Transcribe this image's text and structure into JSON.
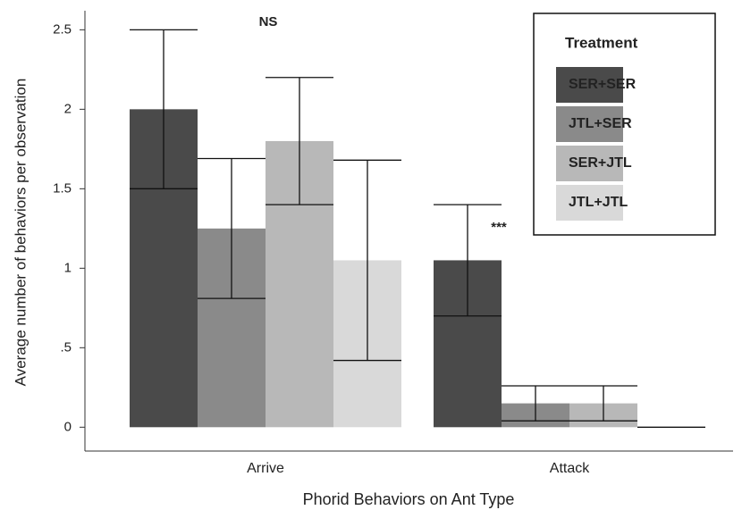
{
  "chart_data": {
    "type": "bar",
    "x_label": "Phorid Behaviors on Ant Type",
    "y_label": "Average number of behaviors per observation",
    "categories": [
      "Arrive",
      "Attack"
    ],
    "series": [
      {
        "name": "SER+SER",
        "color": "#4a4a4a",
        "values": [
          2.0,
          1.05
        ],
        "errors": [
          0.5,
          0.35
        ]
      },
      {
        "name": "JTL+SER",
        "color": "#8a8a8a",
        "values": [
          1.25,
          0.15
        ],
        "errors": [
          0.44,
          0.11
        ]
      },
      {
        "name": "SER+JTL",
        "color": "#b8b8b8",
        "values": [
          1.8,
          0.15
        ],
        "errors": [
          0.4,
          0.11
        ]
      },
      {
        "name": "JTL+JTL",
        "color": "#d9d9d9",
        "values": [
          1.05,
          0
        ],
        "errors": [
          0.63,
          0
        ]
      }
    ],
    "legend_title": "Treatment",
    "legend_position": "upper right",
    "annotations": [
      "NS",
      "***"
    ],
    "ylim": [
      -0.15,
      2.62
    ],
    "yticks": [
      0,
      {
        "value": 0.5,
        "label": ".5"
      },
      1,
      1.5,
      2,
      2.5
    ]
  }
}
